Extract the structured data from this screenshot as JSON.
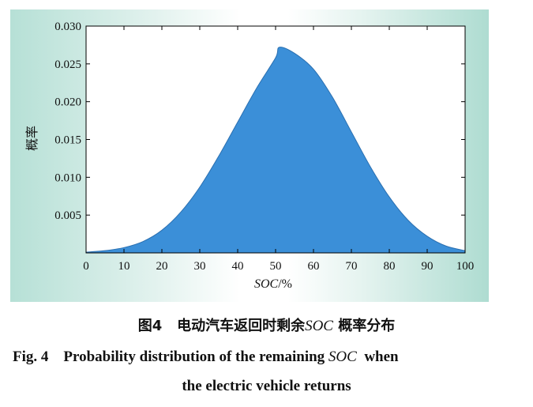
{
  "chart_data": {
    "type": "area",
    "xlabel_prefix": "SOC",
    "xlabel_suffix": "/%",
    "ylabel": "概率",
    "xlim": [
      0,
      100
    ],
    "ylim": [
      0,
      0.03
    ],
    "x_ticks": [
      "0",
      "10",
      "20",
      "30",
      "40",
      "50",
      "60",
      "70",
      "80",
      "90",
      "100"
    ],
    "y_ticks": [
      "0.005",
      "0.010",
      "0.015",
      "0.020",
      "0.025",
      "0.030"
    ],
    "x": [
      0,
      5,
      10,
      15,
      20,
      25,
      30,
      35,
      40,
      45,
      50,
      51,
      55,
      60,
      65,
      70,
      75,
      80,
      85,
      90,
      95,
      100
    ],
    "y": [
      0.0001,
      0.0003,
      0.0007,
      0.0015,
      0.003,
      0.0054,
      0.0087,
      0.0128,
      0.0173,
      0.0218,
      0.0258,
      0.0272,
      0.0264,
      0.0243,
      0.0206,
      0.016,
      0.0114,
      0.0074,
      0.0043,
      0.0022,
      0.0009,
      0.0003
    ],
    "fill_color": "#3b8fd8",
    "grid": false
  },
  "caption": {
    "cn_prefix": "图4",
    "cn_text_a": "电动汽车返回时剩余",
    "cn_term": "SOC",
    "cn_text_b": "概率分布",
    "en_line1_prefix": "Fig. 4",
    "en_line1_text": "Probability distribution of the remaining",
    "en_line1_term": "SOC",
    "en_line1_tail": "when",
    "en_line2": "the electric vehicle returns"
  }
}
